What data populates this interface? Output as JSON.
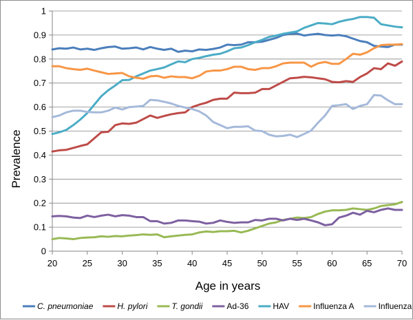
{
  "chart_data": {
    "type": "line",
    "title": "",
    "xlabel": "Age in years",
    "ylabel": "Prevalence",
    "xlim": [
      20,
      70
    ],
    "ylim": [
      0,
      1
    ],
    "x_ticks": [
      20,
      25,
      30,
      35,
      40,
      45,
      50,
      55,
      60,
      65,
      70
    ],
    "y_ticks": [
      0,
      0.1,
      0.2,
      0.3,
      0.4,
      0.5,
      0.6,
      0.7,
      0.8,
      0.9,
      1
    ],
    "y_tick_labels": [
      "0",
      "0.1",
      "0.2",
      "0.3",
      "0.4",
      "0.5",
      "0.6",
      "0.7",
      "0.8",
      "0.9",
      "1"
    ],
    "x_tick_labels": [
      "20",
      "25",
      "30",
      "35",
      "40",
      "45",
      "50",
      "55",
      "60",
      "65",
      "70"
    ],
    "grid": "horizontal",
    "legend_position": "bottom",
    "x": [
      20,
      21,
      22,
      23,
      24,
      25,
      26,
      27,
      28,
      29,
      30,
      31,
      32,
      33,
      34,
      35,
      36,
      37,
      38,
      39,
      40,
      41,
      42,
      43,
      44,
      45,
      46,
      47,
      48,
      49,
      50,
      51,
      52,
      53,
      54,
      55,
      56,
      57,
      58,
      59,
      60,
      61,
      62,
      63,
      64,
      65,
      66,
      67,
      68,
      69,
      70
    ],
    "series": [
      {
        "name": "C. pneumoniae",
        "italic": true,
        "color": "#4a7ebb",
        "values": [
          0.84,
          0.845,
          0.843,
          0.848,
          0.84,
          0.843,
          0.838,
          0.845,
          0.85,
          0.852,
          0.843,
          0.845,
          0.848,
          0.84,
          0.85,
          0.843,
          0.838,
          0.843,
          0.83,
          0.835,
          0.832,
          0.84,
          0.838,
          0.842,
          0.848,
          0.86,
          0.858,
          0.86,
          0.87,
          0.87,
          0.872,
          0.88,
          0.888,
          0.9,
          0.905,
          0.906,
          0.898,
          0.902,
          0.905,
          0.9,
          0.898,
          0.9,
          0.895,
          0.885,
          0.875,
          0.87,
          0.855,
          0.852,
          0.85,
          0.86,
          0.86
        ]
      },
      {
        "name": "H. pylori",
        "italic": true,
        "color": "#be4b48",
        "values": [
          0.415,
          0.42,
          0.422,
          0.43,
          0.438,
          0.445,
          0.47,
          0.495,
          0.497,
          0.525,
          0.532,
          0.53,
          0.535,
          0.55,
          0.565,
          0.555,
          0.563,
          0.57,
          0.575,
          0.578,
          0.6,
          0.61,
          0.618,
          0.63,
          0.635,
          0.635,
          0.66,
          0.658,
          0.658,
          0.66,
          0.675,
          0.675,
          0.69,
          0.705,
          0.72,
          0.722,
          0.726,
          0.724,
          0.72,
          0.716,
          0.705,
          0.703,
          0.708,
          0.705,
          0.725,
          0.74,
          0.762,
          0.758,
          0.782,
          0.772,
          0.79
        ]
      },
      {
        "name": "T. gondii",
        "italic": true,
        "color": "#98b954",
        "values": [
          0.05,
          0.055,
          0.053,
          0.05,
          0.055,
          0.057,
          0.058,
          0.062,
          0.06,
          0.063,
          0.062,
          0.065,
          0.067,
          0.07,
          0.068,
          0.07,
          0.058,
          0.062,
          0.065,
          0.068,
          0.07,
          0.078,
          0.082,
          0.08,
          0.083,
          0.083,
          0.085,
          0.078,
          0.085,
          0.095,
          0.105,
          0.115,
          0.12,
          0.13,
          0.135,
          0.14,
          0.138,
          0.142,
          0.155,
          0.165,
          0.17,
          0.17,
          0.172,
          0.178,
          0.175,
          0.172,
          0.178,
          0.188,
          0.192,
          0.195,
          0.205
        ]
      },
      {
        "name": "Ad-36",
        "italic": false,
        "color": "#7d60a0",
        "values": [
          0.145,
          0.147,
          0.145,
          0.14,
          0.138,
          0.148,
          0.142,
          0.148,
          0.152,
          0.145,
          0.15,
          0.148,
          0.142,
          0.142,
          0.125,
          0.125,
          0.115,
          0.118,
          0.128,
          0.128,
          0.125,
          0.123,
          0.115,
          0.118,
          0.128,
          0.122,
          0.118,
          0.12,
          0.12,
          0.13,
          0.128,
          0.135,
          0.135,
          0.128,
          0.135,
          0.13,
          0.135,
          0.128,
          0.12,
          0.108,
          0.112,
          0.14,
          0.148,
          0.16,
          0.152,
          0.168,
          0.162,
          0.172,
          0.178,
          0.172,
          0.172
        ]
      },
      {
        "name": "HAV",
        "italic": false,
        "color": "#4bacc6",
        "values": [
          0.488,
          0.495,
          0.505,
          0.525,
          0.548,
          0.575,
          0.61,
          0.645,
          0.67,
          0.69,
          0.712,
          0.713,
          0.728,
          0.74,
          0.752,
          0.758,
          0.765,
          0.778,
          0.79,
          0.787,
          0.8,
          0.805,
          0.812,
          0.818,
          0.822,
          0.832,
          0.845,
          0.848,
          0.858,
          0.87,
          0.88,
          0.892,
          0.898,
          0.905,
          0.91,
          0.915,
          0.93,
          0.94,
          0.95,
          0.948,
          0.945,
          0.955,
          0.962,
          0.967,
          0.975,
          0.975,
          0.972,
          0.945,
          0.94,
          0.935,
          0.932
        ]
      },
      {
        "name": "Influenza A",
        "italic": false,
        "color": "#f79646",
        "values": [
          0.77,
          0.77,
          0.762,
          0.758,
          0.755,
          0.76,
          0.752,
          0.745,
          0.738,
          0.74,
          0.742,
          0.728,
          0.722,
          0.718,
          0.728,
          0.73,
          0.722,
          0.728,
          0.725,
          0.725,
          0.72,
          0.73,
          0.748,
          0.752,
          0.752,
          0.758,
          0.768,
          0.768,
          0.758,
          0.755,
          0.762,
          0.762,
          0.77,
          0.782,
          0.785,
          0.785,
          0.785,
          0.768,
          0.782,
          0.788,
          0.78,
          0.78,
          0.8,
          0.822,
          0.818,
          0.828,
          0.845,
          0.858,
          0.86,
          0.86,
          0.862
        ]
      },
      {
        "name": "Influenza B",
        "italic": false,
        "color": "#a5b9da",
        "values": [
          0.558,
          0.565,
          0.578,
          0.585,
          0.585,
          0.58,
          0.578,
          0.578,
          0.585,
          0.598,
          0.59,
          0.6,
          0.602,
          0.605,
          0.63,
          0.628,
          0.622,
          0.615,
          0.605,
          0.598,
          0.592,
          0.582,
          0.565,
          0.538,
          0.525,
          0.512,
          0.518,
          0.518,
          0.52,
          0.502,
          0.5,
          0.485,
          0.478,
          0.48,
          0.485,
          0.475,
          0.488,
          0.502,
          0.535,
          0.565,
          0.605,
          0.608,
          0.612,
          0.592,
          0.605,
          0.612,
          0.65,
          0.648,
          0.628,
          0.612,
          0.612
        ]
      }
    ]
  }
}
